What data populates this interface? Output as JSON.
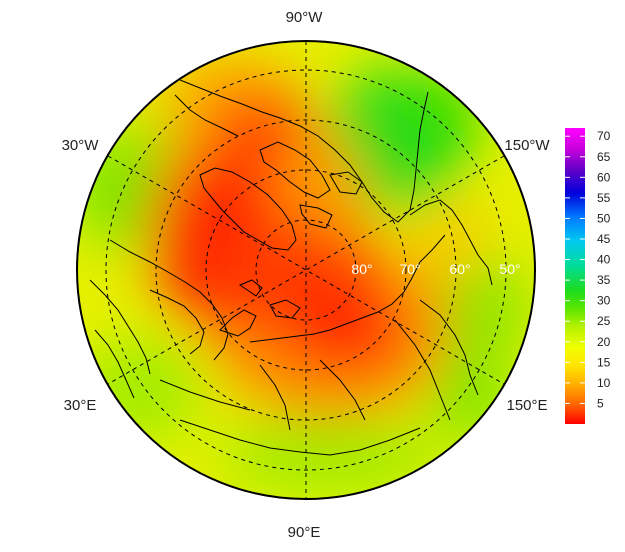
{
  "map": {
    "projection": "north-polar-stereographic",
    "longitude_labels": [
      {
        "text": "90°W",
        "lon": -90
      },
      {
        "text": "150°W",
        "lon": -150
      },
      {
        "text": "150°E",
        "lon": 150
      },
      {
        "text": "90°E",
        "lon": 90
      },
      {
        "text": "30°E",
        "lon": 30
      },
      {
        "text": "30°W",
        "lon": -30
      }
    ],
    "latitude_labels": [
      {
        "text": "80°",
        "lat": 80
      },
      {
        "text": "70°",
        "lat": 70
      },
      {
        "text": "60°",
        "lat": 60
      },
      {
        "text": "50°",
        "lat": 50
      }
    ],
    "gridline_style": "dashed",
    "outer_latitude": 40
  },
  "colorbar": {
    "min": 0,
    "max": 72,
    "ticks": [
      "70",
      "65",
      "60",
      "55",
      "50",
      "45",
      "40",
      "35",
      "30",
      "25",
      "20",
      "15",
      "10",
      "5"
    ],
    "colors": [
      "#ff0000",
      "#ff6a00",
      "#ffb400",
      "#ffe600",
      "#f0ff00",
      "#b4f000",
      "#5ae600",
      "#1edc1e",
      "#00dca0",
      "#00c8f0",
      "#0078ff",
      "#0000dc",
      "#6400c8",
      "#c800dc",
      "#ff00ff"
    ]
  }
}
